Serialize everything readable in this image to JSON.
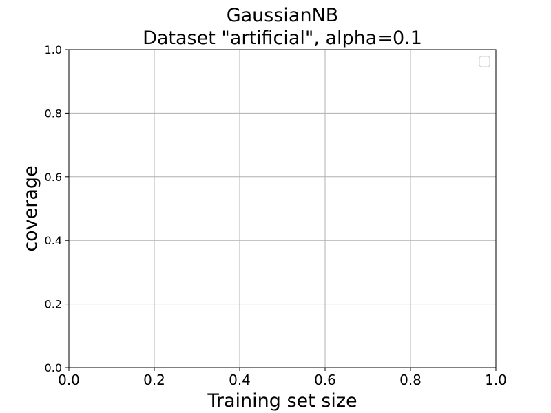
{
  "chart_data": {
    "type": "line",
    "title": [
      "GaussianNB",
      "Dataset \"artificial\", alpha=0.1"
    ],
    "xlabel": "Training set size",
    "ylabel": "coverage",
    "xlim": [
      0.0,
      1.0
    ],
    "ylim": [
      0.0,
      1.0
    ],
    "x_ticks": [
      "0.0",
      "0.2",
      "0.4",
      "0.6",
      "0.8",
      "1.0"
    ],
    "y_ticks": [
      "0.0",
      "0.2",
      "0.4",
      "0.6",
      "0.8",
      "1.0"
    ],
    "grid": true,
    "legend_placement": "top-right",
    "legend_entries": [],
    "series": []
  }
}
